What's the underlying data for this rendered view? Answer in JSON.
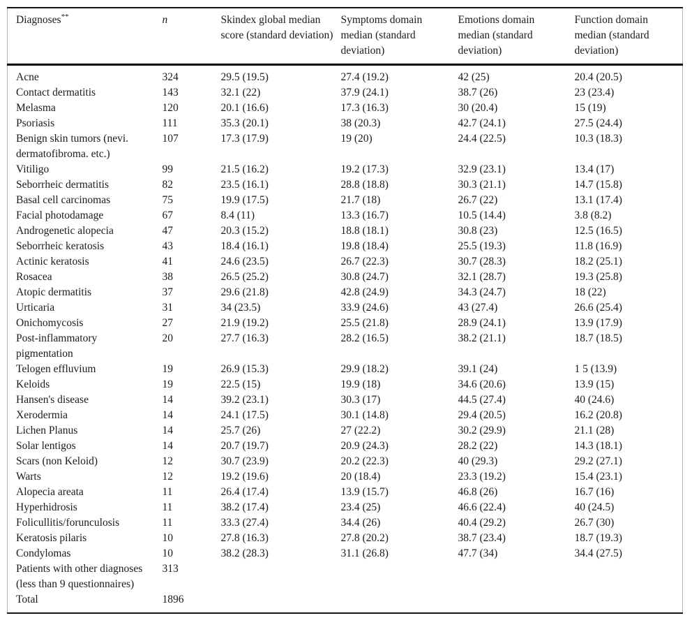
{
  "table": {
    "column_keys": [
      "diagnosis",
      "n",
      "skindex-global",
      "symptoms",
      "emotions",
      "function"
    ],
    "columns": [
      {
        "label": "Diagnoses",
        "superscript": "**"
      },
      {
        "label": "n"
      },
      {
        "label": "Skindex global median score (standard deviation)"
      },
      {
        "label": "Symptoms domain median (standard deviation)"
      },
      {
        "label": "Emotions domain median (standard deviation)"
      },
      {
        "label": "Function domain median (standard deviation)"
      }
    ],
    "rows": [
      [
        "Acne",
        "324",
        "29.5 (19.5)",
        "27.4 (19.2)",
        "42 (25)",
        "20.4 (20.5)"
      ],
      [
        "Contact dermatitis",
        "143",
        "32.1 (22)",
        "37.9 (24.1)",
        "38.7 (26)",
        "23 (23.4)"
      ],
      [
        "Melasma",
        "120",
        "20.1 (16.6)",
        "17.3 (16.3)",
        "30 (20.4)",
        "15 (19)"
      ],
      [
        "Psoriasis",
        "111",
        "35.3 (20.1)",
        "38 (20.3)",
        "42.7 (24.1)",
        "27.5 (24.4)"
      ],
      [
        "Benign skin tumors (nevi. dermatofibroma. etc.)",
        "107",
        "17.3 (17.9)",
        "19 (20)",
        "24.4 (22.5)",
        "10.3 (18.3)"
      ],
      [
        "Vitiligo",
        "99",
        "21.5 (16.2)",
        "19.2 (17.3)",
        "32.9 (23.1)",
        "13.4 (17)"
      ],
      [
        "Seborrheic dermatitis",
        "82",
        "23.5 (16.1)",
        "28.8 (18.8)",
        "30.3 (21.1)",
        "14.7 (15.8)"
      ],
      [
        "Basal cell carcinomas",
        "75",
        "19.9 (17.5)",
        "21.7 (18)",
        "26.7 (22)",
        "13.1 (17.4)"
      ],
      [
        "Facial photodamage",
        "67",
        "8.4 (11)",
        "13.3 (16.7)",
        "10.5 (14.4)",
        "3.8 (8.2)"
      ],
      [
        "Androgenetic alopecia",
        "47",
        "20.3 (15.2)",
        "18.8 (18.1)",
        "30.8 (23)",
        "12.5 (16.5)"
      ],
      [
        "Seborrheic keratosis",
        "43",
        "18.4 (16.1)",
        "19.8 (18.4)",
        "25.5 (19.3)",
        "11.8 (16.9)"
      ],
      [
        "Actinic keratosis",
        "41",
        "24.6 (23.5)",
        "26.7 (22.3)",
        "30.7 (28.3)",
        "18.2 (25.1)"
      ],
      [
        "Rosacea",
        "38",
        "26.5 (25.2)",
        "30.8 (24.7)",
        "32.1 (28.7)",
        "19.3 (25.8)"
      ],
      [
        "Atopic dermatitis",
        "37",
        "29.6 (21.8)",
        "42.8 (24.9)",
        "34.3 (24.7)",
        "18 (22)"
      ],
      [
        "Urticaria",
        "31",
        "34 (23.5)",
        "33.9 (24.6)",
        "43 (27.4)",
        "26.6 (25.4)"
      ],
      [
        "Onichomycosis",
        "27",
        "21.9 (19.2)",
        "25.5 (21.8)",
        "28.9 (24.1)",
        "13.9 (17.9)"
      ],
      [
        "Post-inflammatory pigmentation",
        "20",
        "27.7 (16.3)",
        "28.2 (16.5)",
        "38.2 (21.1)",
        "18.7 (18.5)"
      ],
      [
        "Telogen effluvium",
        "19",
        "26.9 (15.3)",
        "29.9 (18.2)",
        "39.1 (24)",
        "1 5 (13.9)"
      ],
      [
        "Keloids",
        "19",
        "22.5 (15)",
        "19.9 (18)",
        "34.6 (20.6)",
        "13.9 (15)"
      ],
      [
        "Hansen's disease",
        "14",
        "39.2 (23.1)",
        "30.3 (17)",
        "44.5 (27.4)",
        "40 (24.6)"
      ],
      [
        "Xerodermia",
        "14",
        "24.1 (17.5)",
        "30.1 (14.8)",
        "29.4 (20.5)",
        "16.2 (20.8)"
      ],
      [
        "Lichen Planus",
        "14",
        "25.7 (26)",
        "27 (22.2)",
        "30.2 (29.9)",
        "21.1 (28)"
      ],
      [
        "Solar lentigos",
        "14",
        "20.7 (19.7)",
        "20.9 (24.3)",
        "28.2 (22)",
        "14.3 (18.1)"
      ],
      [
        "Scars (non Keloid)",
        "12",
        "30.7 (23.9)",
        "20.2 (22.3)",
        "40 (29.3)",
        "29.2 (27.1)"
      ],
      [
        "Warts",
        "12",
        "19.2 (19.6)",
        "20 (18.4)",
        "23.3 (19.2)",
        "15.4 (23.1)"
      ],
      [
        "Alopecia areata",
        "11",
        "26.4 (17.4)",
        "13.9 (15.7)",
        "46.8 (26)",
        "16.7 (16)"
      ],
      [
        "Hyperhidrosis",
        "11",
        "38.2 (17.4)",
        "23.4 (25)",
        "46.6 (22.4)",
        "40 (24.5)"
      ],
      [
        "Folicullitis/forunculosis",
        "11",
        "33.3 (27.4)",
        "34.4 (26)",
        "40.4 (29.2)",
        "26.7 (30)"
      ],
      [
        "Keratosis pilaris",
        "10",
        "27.8 (16.3)",
        "27.8 (20.2)",
        "38.7 (23.4)",
        "18.7 (19.3)"
      ],
      [
        "Condylomas",
        "10",
        "38.2 (28.3)",
        "31.1 (26.8)",
        "47.7 (34)",
        "34.4 (27.5)"
      ],
      [
        "Patients with other diagnoses (less than 9 questionnaires)",
        "313",
        "",
        "",
        "",
        ""
      ],
      [
        "Total",
        "1896",
        "",
        "",
        "",
        ""
      ]
    ]
  }
}
